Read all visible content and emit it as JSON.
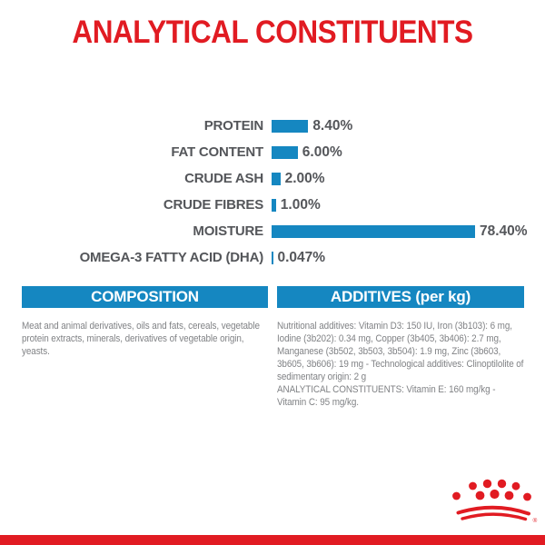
{
  "title": {
    "text": "ANALYTICAL CONSTITUENTS"
  },
  "chart_data": {
    "type": "bar",
    "orientation": "horizontal",
    "title": "ANALYTICAL CONSTITUENTS",
    "categories": [
      "PROTEIN",
      "FAT CONTENT",
      "CRUDE ASH",
      "CRUDE FIBRES",
      "MOISTURE",
      "OMEGA-3 FATTY ACID (DHA)"
    ],
    "values": [
      8.4,
      6.0,
      2.0,
      1.0,
      78.4,
      0.047
    ],
    "value_labels": [
      "8.40%",
      "6.00%",
      "2.00%",
      "1.00%",
      "78.40%",
      "0.047%"
    ],
    "unit": "%",
    "xlim": [
      0,
      78.4
    ],
    "grid": false,
    "legend": false,
    "bar_color": "#1587c1",
    "label_color": "#54565a"
  },
  "sections": {
    "composition": {
      "header": "COMPOSITION",
      "body": "Meat and animal derivatives, oils and fats, cereals, vegetable protein extracts, minerals, derivatives of vegetable origin, yeasts."
    },
    "additives": {
      "header": "ADDITIVES (per kg)",
      "body": "Nutritional additives: Vitamin D3: 150 IU, Iron (3b103): 6 mg, Iodine (3b202): 0.34 mg, Copper (3b405, 3b406): 2.7 mg, Manganese (3b502, 3b503, 3b504): 1.9 mg, Zinc (3b603, 3b605, 3b606): 19 mg - Technological additives: Clinoptilolite of sedimentary origin: 2 g",
      "analytical_note": "ANALYTICAL CONSTITUENTS: Vitamin E: 160 mg/kg - Vitamin C: 95 mg/kg."
    }
  },
  "footer": {
    "brand_logo": "royal-canin-crown-icon",
    "registered_mark": "®"
  },
  "colors": {
    "accent_red": "#e11b22",
    "accent_blue": "#1587c1",
    "label_gray": "#54565a",
    "body_gray": "#808285",
    "background": "#ffffff"
  }
}
